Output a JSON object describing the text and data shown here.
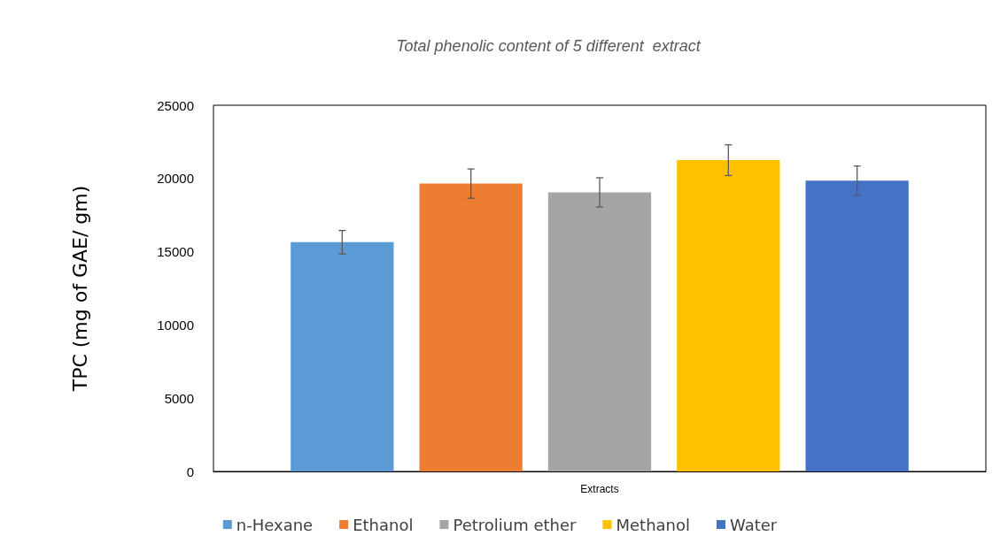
{
  "chart_data": {
    "type": "bar",
    "title": "Total phenolic content of 5 different  extract",
    "xlabel": "Extracts",
    "ylabel": "TPC (mg of GAE/ gm)",
    "categories": [
      null
    ],
    "series": [
      {
        "name": "n-Hexane",
        "color": "#5b9bd5",
        "values": [
          15650
        ],
        "errors": [
          800
        ]
      },
      {
        "name": "Ethanol",
        "color": "#ed7d31",
        "values": [
          19650
        ],
        "errors": [
          1000
        ]
      },
      {
        "name": "Petrolium ether",
        "color": "#a5a5a5",
        "values": [
          19050
        ],
        "errors": [
          1000
        ]
      },
      {
        "name": "Methanol",
        "color": "#ffc000",
        "values": [
          21250
        ],
        "errors": [
          1050
        ]
      },
      {
        "name": "Water",
        "color": "#4472c4",
        "values": [
          19850
        ],
        "errors": [
          1000
        ]
      }
    ],
    "ylim": [
      0,
      25000
    ],
    "yticks": [
      0,
      5000,
      10000,
      15000,
      20000,
      25000
    ],
    "grid": false,
    "legend": "bottom"
  }
}
